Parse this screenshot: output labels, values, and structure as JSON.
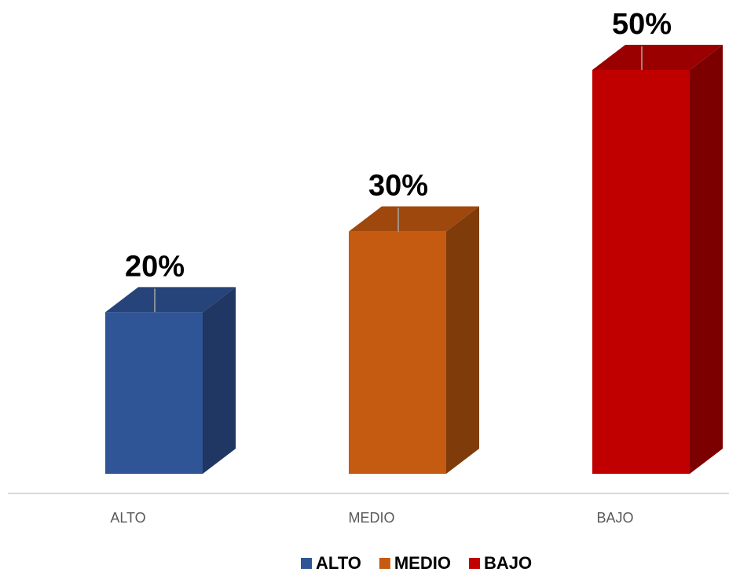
{
  "chart_data": {
    "type": "bar3d",
    "categories": [
      "ALTO",
      "MEDIO",
      "BAJO"
    ],
    "values": [
      20,
      30,
      50
    ],
    "value_labels": [
      "20%",
      "30%",
      "50%"
    ],
    "colors": [
      "#2f5597",
      "#c55a11",
      "#c00000"
    ],
    "legend": "bottom"
  }
}
